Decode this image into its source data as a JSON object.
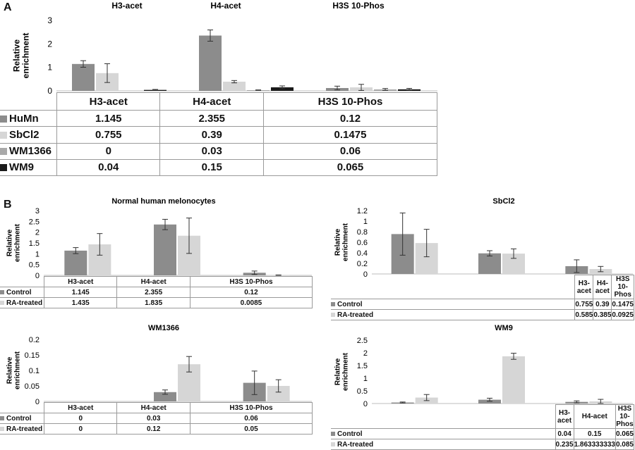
{
  "panelA": {
    "letter": "A",
    "ylabel": "Relative enrichment",
    "header_labels": [
      "H3-acet",
      "H4-acet",
      "H3S 10-Phos"
    ],
    "colors": [
      "#8c8c8c",
      "#d6d6d6",
      "#a9a9a9",
      "#1a1a1a"
    ],
    "table": {
      "col_headers": [
        "H3-acet",
        "H4-acet",
        "H3S 10-Phos"
      ],
      "rows": [
        {
          "name": "HuMn",
          "cells": [
            "1.145",
            "2.355",
            "0.12"
          ]
        },
        {
          "name": "SbCl2",
          "cells": [
            "0.755",
            "0.39",
            "0.1475"
          ]
        },
        {
          "name": "WM1366",
          "cells": [
            "0",
            "0.03",
            "0.06"
          ]
        },
        {
          "name": "WM9",
          "cells": [
            "0.04",
            "0.15",
            "0.065"
          ]
        }
      ]
    }
  },
  "panelB": {
    "letter": "B",
    "ylabel": "Relative enrichment",
    "colors": [
      "#8c8c8c",
      "#d6d6d6"
    ],
    "charts": [
      {
        "title": "Normal human melonocytes",
        "table": {
          "col_headers": [
            "H3-acet",
            "H4-acet",
            "H3S 10-Phos"
          ],
          "rows": [
            {
              "name": "Control",
              "cells": [
                "1.145",
                "2.355",
                "0.12"
              ]
            },
            {
              "name": "RA-treated",
              "cells": [
                "1.435",
                "1.835",
                "0.0085"
              ]
            }
          ]
        }
      },
      {
        "title": "SbCl2",
        "table": {
          "col_headers": [
            "H3-acet",
            "H4-acet",
            "H3S 10-Phos"
          ],
          "rows": [
            {
              "name": "Control",
              "cells": [
                "0.755",
                "0.39",
                "0.1475"
              ]
            },
            {
              "name": "RA-treated",
              "cells": [
                "0.585",
                "0.385",
                "0.0925"
              ]
            }
          ]
        }
      },
      {
        "title": "WM1366",
        "table": {
          "col_headers": [
            "H3-acet",
            "H4-acet",
            "H3S 10-Phos"
          ],
          "rows": [
            {
              "name": "Control",
              "cells": [
                "0",
                "0.03",
                "0.06"
              ]
            },
            {
              "name": "RA-treated",
              "cells": [
                "0",
                "0.12",
                "0.05"
              ]
            }
          ]
        }
      },
      {
        "title": "WM9",
        "table": {
          "col_headers": [
            "H3-acet",
            "H4-acet",
            "H3S 10-Phos"
          ],
          "rows": [
            {
              "name": "Control",
              "cells": [
                "0.04",
                "0.15",
                "0.065"
              ]
            },
            {
              "name": "RA-treated",
              "cells": [
                "0.235",
                "1.863333333",
                "0.085"
              ]
            }
          ]
        }
      }
    ]
  },
  "chart_data": [
    {
      "type": "bar",
      "panel": "A",
      "categories": [
        "H3-acet",
        "H4-acet",
        "H3S 10-Phos"
      ],
      "series": [
        {
          "name": "HuMn",
          "values": [
            1.145,
            2.355,
            0.12
          ],
          "errors": [
            0.14,
            0.24,
            0.08
          ]
        },
        {
          "name": "SbCl2",
          "values": [
            0.755,
            0.39,
            0.1475
          ],
          "errors": [
            0.4,
            0.05,
            0.13
          ]
        },
        {
          "name": "WM1366",
          "values": [
            0,
            0.03,
            0.06
          ],
          "errors": [
            0,
            0.01,
            0.04
          ]
        },
        {
          "name": "WM9",
          "values": [
            0.04,
            0.15,
            0.065
          ],
          "errors": [
            0.02,
            0.06,
            0.04
          ]
        }
      ],
      "ylabel": "Relative enrichment",
      "ylim": [
        0,
        3
      ],
      "yticks": [
        0,
        1,
        2,
        3
      ],
      "grid": false,
      "legend": "table-left"
    },
    {
      "type": "bar",
      "title": "Normal human melonocytes",
      "categories": [
        "H3-acet",
        "H4-acet",
        "H3S 10-Phos"
      ],
      "series": [
        {
          "name": "Control",
          "values": [
            1.145,
            2.355,
            0.12
          ],
          "errors": [
            0.14,
            0.24,
            0.08
          ]
        },
        {
          "name": "RA-treated",
          "values": [
            1.435,
            1.835,
            0.0085
          ],
          "errors": [
            0.5,
            0.82,
            0.01
          ]
        }
      ],
      "ylabel": "Relative enrichment",
      "ylim": [
        0,
        3
      ],
      "yticks": [
        0,
        0.5,
        1,
        1.5,
        2,
        2.5,
        3
      ],
      "grid": false,
      "legend": "table-left"
    },
    {
      "type": "bar",
      "title": "SbCl2",
      "categories": [
        "H3-acet",
        "H4-acet",
        "H3S 10-Phos"
      ],
      "series": [
        {
          "name": "Control",
          "values": [
            0.755,
            0.39,
            0.1475
          ],
          "errors": [
            0.4,
            0.05,
            0.12
          ]
        },
        {
          "name": "RA-treated",
          "values": [
            0.585,
            0.385,
            0.0925
          ],
          "errors": [
            0.26,
            0.09,
            0.05
          ]
        }
      ],
      "ylabel": "Relative enrichment",
      "ylim": [
        0,
        1.2
      ],
      "yticks": [
        0,
        0.2,
        0.4,
        0.6,
        0.8,
        1,
        1.2
      ],
      "grid": false,
      "legend": "table-left"
    },
    {
      "type": "bar",
      "title": "WM1366",
      "categories": [
        "H3-acet",
        "H4-acet",
        "H3S 10-Phos"
      ],
      "series": [
        {
          "name": "Control",
          "values": [
            0,
            0.03,
            0.06
          ],
          "errors": [
            0,
            0.007,
            0.038
          ]
        },
        {
          "name": "RA-treated",
          "values": [
            0,
            0.12,
            0.05
          ],
          "errors": [
            0,
            0.025,
            0.02
          ]
        }
      ],
      "ylabel": "Relative enrichment",
      "ylim": [
        0,
        0.2
      ],
      "yticks": [
        0,
        0.05,
        0.1,
        0.15,
        0.2
      ],
      "grid": false,
      "legend": "table-left"
    },
    {
      "type": "bar",
      "title": "WM9",
      "categories": [
        "H3-acet",
        "H4-acet",
        "H3S 10-Phos"
      ],
      "series": [
        {
          "name": "Control",
          "values": [
            0.04,
            0.15,
            0.065
          ],
          "errors": [
            0.02,
            0.06,
            0.04
          ]
        },
        {
          "name": "RA-treated",
          "values": [
            0.235,
            1.863333333,
            0.085
          ],
          "errors": [
            0.12,
            0.12,
            0.08
          ]
        }
      ],
      "ylabel": "Relative enrichment",
      "ylim": [
        0,
        2.5
      ],
      "yticks": [
        0,
        0.5,
        1,
        1.5,
        2,
        2.5
      ],
      "grid": false,
      "legend": "table-left"
    }
  ]
}
